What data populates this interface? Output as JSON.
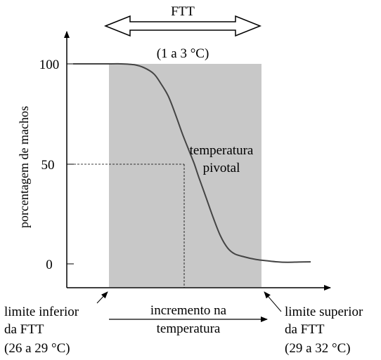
{
  "chart_data": {
    "type": "line",
    "title": "",
    "xlabel": "",
    "ylabel": "porcentagem de machos",
    "ylim": [
      0,
      100
    ],
    "yticks": [
      {
        "value": 100,
        "label": "100"
      },
      {
        "value": 50,
        "label": "50"
      },
      {
        "value": 0,
        "label": "0"
      }
    ],
    "ftt": {
      "label": "FTT",
      "range_label": "(1 a 3 °C)"
    },
    "pivotal": {
      "label_line1": "temperatura",
      "label_line2": "pivotal",
      "y_value": 50
    },
    "lower_limit": {
      "line1": "limite inferior",
      "line2": "da FTT",
      "line3": "(26 a 29 °C)"
    },
    "upper_limit": {
      "line1": "limite superior",
      "line2": "da FTT",
      "line3": "(29 a 32 °C)"
    },
    "increment": {
      "line1": "incremento na",
      "line2": "temperatura"
    },
    "shade_color": "#c8c8c8",
    "series": [
      {
        "values_pct": [
          100,
          100,
          100,
          99.5,
          98,
          95,
          90,
          84,
          75,
          65,
          56,
          50,
          43,
          33,
          23,
          14,
          8,
          5,
          3.5,
          2.2,
          1.5,
          1,
          0.8,
          0.9,
          1
        ],
        "x_rel": [
          0,
          0.16,
          0.2,
          0.26,
          0.3,
          0.34,
          0.37,
          0.4,
          0.43,
          0.46,
          0.49,
          0.51,
          0.53,
          0.56,
          0.59,
          0.62,
          0.65,
          0.68,
          0.72,
          0.77,
          0.82,
          0.86,
          0.9,
          0.95,
          1.0
        ]
      }
    ]
  }
}
